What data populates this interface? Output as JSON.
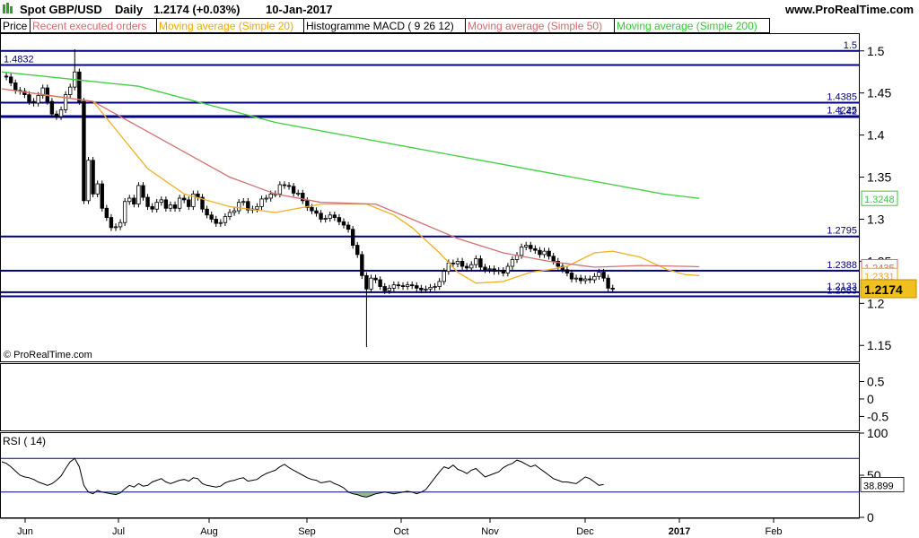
{
  "header": {
    "instrument": "Spot GBP/USD",
    "timeframe": "Daily",
    "quote": "1.2174 (+0.03%)",
    "date": "10-Jan-2017",
    "site": "www.ProRealTime.com"
  },
  "legend_tabs": [
    {
      "label": "Price",
      "color": "#000000"
    },
    {
      "label": "Recent executed orders",
      "color": "#e06666"
    },
    {
      "label": "Moving average (Simple 20)",
      "color": "#f0a800"
    },
    {
      "label": "Histogramme MACD ( 9 26 12)",
      "color": "#000000"
    },
    {
      "label": "Moving average (Simple 50)",
      "color": "#d46a6a"
    },
    {
      "label": "Moving average (Simple 200)",
      "color": "#33cc33"
    }
  ],
  "copyright": "© ProRealTime.com",
  "colors": {
    "candle": "#000000",
    "sma20": "#f0b020",
    "sma50": "#d47070",
    "sma200": "#40d040",
    "hline": "#000080",
    "rsi_fill": "#6aa06a",
    "last_badge": "#f0c020"
  },
  "chart_data": [
    {
      "type": "candlestick",
      "panel": "price",
      "x": {
        "months": [
          "Jun",
          "Jul",
          "Aug",
          "Sep",
          "Oct",
          "Nov",
          "Dec",
          "2017",
          "Feb"
        ]
      },
      "ylim": [
        1.13,
        1.52
      ],
      "y_ticks": [
        1.5,
        1.45,
        1.4,
        1.35,
        1.3,
        1.25,
        1.2,
        1.15
      ],
      "horizontal_levels": [
        {
          "value": 1.5,
          "label": "1.5"
        },
        {
          "value": 1.4832,
          "label": "1.4832"
        },
        {
          "value": 1.4385,
          "label": "1.4385"
        },
        {
          "value": 1.4225,
          "label": "1.4225"
        },
        {
          "value": 1.4215,
          "label": "1.42"
        },
        {
          "value": 1.2795,
          "label": "1.2795"
        },
        {
          "value": 1.2388,
          "label": "1.2388"
        },
        {
          "value": 1.2133,
          "label": "1.2133"
        },
        {
          "value": 1.2083,
          "label": "1.2083"
        }
      ],
      "right_badges": [
        {
          "value": 1.3248,
          "label": "1.3248",
          "color": "#33cc33"
        },
        {
          "value": 1.2435,
          "label": "1.2435",
          "color": "#d46a6a"
        },
        {
          "value": 1.2331,
          "label": "1.2331",
          "color": "#f0a800"
        }
      ],
      "last_price": {
        "value": 1.2174,
        "label": "1.2174"
      },
      "series": [
        {
          "name": "Price",
          "closes": [
            1.47,
            1.469,
            1.462,
            1.453,
            1.452,
            1.448,
            1.44,
            1.438,
            1.447,
            1.456,
            1.44,
            1.425,
            1.422,
            1.43,
            1.448,
            1.457,
            1.475,
            1.44,
            1.322,
            1.37,
            1.33,
            1.342,
            1.313,
            1.302,
            1.29,
            1.291,
            1.296,
            1.321,
            1.325,
            1.318,
            1.34,
            1.326,
            1.315,
            1.312,
            1.32,
            1.323,
            1.313,
            1.317,
            1.313,
            1.325,
            1.323,
            1.315,
            1.33,
            1.326,
            1.312,
            1.305,
            1.3,
            1.295,
            1.296,
            1.303,
            1.308,
            1.31,
            1.32,
            1.321,
            1.311,
            1.312,
            1.315,
            1.324,
            1.325,
            1.33,
            1.33,
            1.341,
            1.34,
            1.339,
            1.331,
            1.331,
            1.322,
            1.314,
            1.31,
            1.307,
            1.3,
            1.301,
            1.305,
            1.302,
            1.297,
            1.293,
            1.288,
            1.269,
            1.258,
            1.233,
            1.217,
            1.23,
            1.228,
            1.22,
            1.215,
            1.218,
            1.222,
            1.221,
            1.22,
            1.222,
            1.221,
            1.218,
            1.216,
            1.217,
            1.219,
            1.22,
            1.226,
            1.238,
            1.248,
            1.247,
            1.25,
            1.244,
            1.242,
            1.246,
            1.253,
            1.243,
            1.24,
            1.241,
            1.238,
            1.239,
            1.236,
            1.244,
            1.252,
            1.257,
            1.267,
            1.269,
            1.265,
            1.263,
            1.258,
            1.262,
            1.256,
            1.25,
            1.244,
            1.24,
            1.236,
            1.229,
            1.23,
            1.227,
            1.229,
            1.228,
            1.232,
            1.237,
            1.23,
            1.218,
            1.2174
          ]
        },
        {
          "name": "Moving average (Simple 20)",
          "points": [
            [
              0,
              1.455
            ],
            [
              10,
              1.447
            ],
            [
              20,
              1.44
            ],
            [
              26,
              1.4
            ],
            [
              32,
              1.36
            ],
            [
              40,
              1.33
            ],
            [
              50,
              1.315
            ],
            [
              60,
              1.308
            ],
            [
              70,
              1.318
            ],
            [
              80,
              1.318
            ],
            [
              86,
              1.305
            ],
            [
              90,
              1.29
            ],
            [
              96,
              1.26
            ],
            [
              100,
              1.237
            ],
            [
              104,
              1.224
            ],
            [
              110,
              1.226
            ],
            [
              116,
              1.237
            ],
            [
              120,
              1.24
            ],
            [
              124,
              1.244
            ],
            [
              130,
              1.26
            ],
            [
              134,
              1.262
            ],
            [
              140,
              1.255
            ],
            [
              146,
              1.24
            ],
            [
              150,
              1.234
            ],
            [
              153,
              1.233
            ]
          ]
        },
        {
          "name": "Moving average (Simple 50)",
          "points": [
            [
              0,
              1.455
            ],
            [
              20,
              1.44
            ],
            [
              30,
              1.41
            ],
            [
              40,
              1.38
            ],
            [
              50,
              1.35
            ],
            [
              60,
              1.33
            ],
            [
              70,
              1.32
            ],
            [
              82,
              1.318
            ],
            [
              90,
              1.3
            ],
            [
              100,
              1.277
            ],
            [
              110,
              1.26
            ],
            [
              120,
              1.25
            ],
            [
              130,
              1.243
            ],
            [
              140,
              1.245
            ],
            [
              150,
              1.244
            ],
            [
              153,
              1.2435
            ]
          ]
        },
        {
          "name": "Moving average (Simple 200)",
          "points": [
            [
              0,
              1.475
            ],
            [
              30,
              1.458
            ],
            [
              60,
              1.415
            ],
            [
              90,
              1.385
            ],
            [
              120,
              1.355
            ],
            [
              145,
              1.33
            ],
            [
              153,
              1.3248
            ]
          ]
        }
      ]
    },
    {
      "type": "bar",
      "panel": "macd",
      "name": "Histogramme MACD ( 9 26 12)",
      "ylim": [
        -0.9,
        1.0
      ],
      "y_ticks": [
        0.5,
        0,
        -0.5
      ],
      "values": []
    },
    {
      "type": "line",
      "panel": "rsi",
      "title": "RSI ( 14)",
      "ylim": [
        0,
        100
      ],
      "y_ticks": [
        100,
        50,
        0
      ],
      "levels": [
        70,
        30
      ],
      "last_value": {
        "value": 38.899,
        "label": "38.899"
      },
      "values": [
        66,
        64,
        60,
        55,
        50,
        48,
        47,
        45,
        42,
        40,
        38,
        40,
        44,
        49,
        58,
        66,
        70,
        60,
        38,
        30,
        28,
        32,
        30,
        29,
        28,
        27,
        29,
        34,
        38,
        36,
        40,
        37,
        38,
        42,
        44,
        46,
        42,
        40,
        42,
        44,
        45,
        43,
        47,
        46,
        40,
        38,
        37,
        36,
        37,
        41,
        43,
        44,
        46,
        47,
        43,
        44,
        45,
        49,
        52,
        54,
        56,
        60,
        63,
        59,
        56,
        53,
        50,
        47,
        45,
        44,
        41,
        42,
        43,
        40,
        38,
        35,
        30,
        28,
        27,
        25,
        24,
        26,
        28,
        29,
        30,
        29,
        28,
        29,
        30,
        31,
        30,
        28,
        30,
        33,
        40,
        47,
        54,
        60,
        58,
        62,
        57,
        55,
        52,
        56,
        58,
        53,
        48,
        50,
        52,
        54,
        59,
        62,
        64,
        68,
        66,
        63,
        60,
        62,
        58,
        54,
        50,
        46,
        44,
        42,
        42,
        41,
        40,
        44,
        48,
        46,
        42,
        38,
        39
      ]
    }
  ]
}
